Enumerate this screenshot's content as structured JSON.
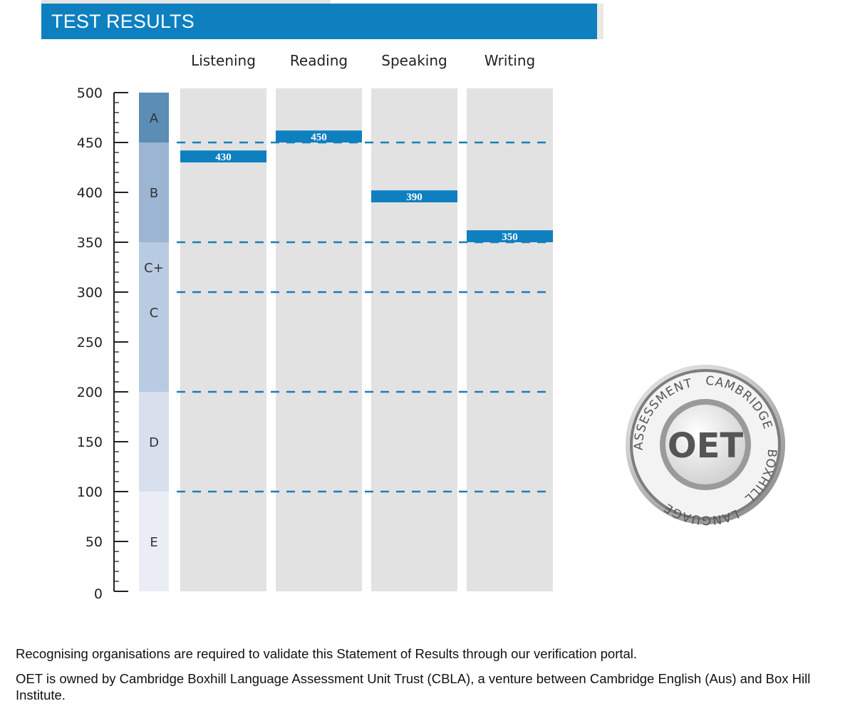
{
  "header": {
    "title": "TEST RESULTS"
  },
  "chart_data": {
    "type": "bar",
    "title": "TEST RESULTS",
    "categories": [
      "Listening",
      "Reading",
      "Speaking",
      "Writing"
    ],
    "values": [
      430,
      450,
      390,
      350
    ],
    "value_labels": [
      "430",
      "450",
      "390",
      "350"
    ],
    "ylim": [
      0,
      500
    ],
    "y_ticks": [
      0,
      50,
      100,
      150,
      200,
      250,
      300,
      350,
      400,
      450,
      500
    ],
    "y_tick_labels": [
      "0",
      "50",
      "100",
      "150",
      "200",
      "250",
      "300",
      "350",
      "400",
      "450",
      "500"
    ],
    "minor_tick_step": 10,
    "reference_lines": [
      450,
      350,
      300,
      200,
      100
    ],
    "grade_bands": [
      {
        "grade": "A",
        "from": 450,
        "to": 500,
        "color": "#5b8db5"
      },
      {
        "grade": "B",
        "from": 350,
        "to": 450,
        "color": "#9bb5d3"
      },
      {
        "grade": "C+",
        "from": 300,
        "to": 350,
        "color": "#b9cae3"
      },
      {
        "grade": "C",
        "from": 200,
        "to": 300,
        "color": "#b9cae3"
      },
      {
        "grade": "D",
        "from": 100,
        "to": 200,
        "color": "#d8e0ee"
      },
      {
        "grade": "E",
        "from": 0,
        "to": 100,
        "color": "#ebedf5"
      }
    ],
    "colors": {
      "bar": "#0e80c0",
      "column": "#e3e2e3",
      "reference_line": "#1a7fb5"
    }
  },
  "seal": {
    "top_left_text": "ASSESSMENT",
    "top_right_text": "CAMBRIDGE",
    "right_text": "BOXHILL",
    "bottom_text": "LANGUAGE",
    "center_text": "OET"
  },
  "footer": {
    "line1": "Recognising organisations are required to validate this Statement of Results through our verification portal.",
    "line2": "OET is owned by Cambridge Boxhill Language Assessment Unit Trust (CBLA), a venture between Cambridge English (Aus) and Box Hill Institute."
  }
}
